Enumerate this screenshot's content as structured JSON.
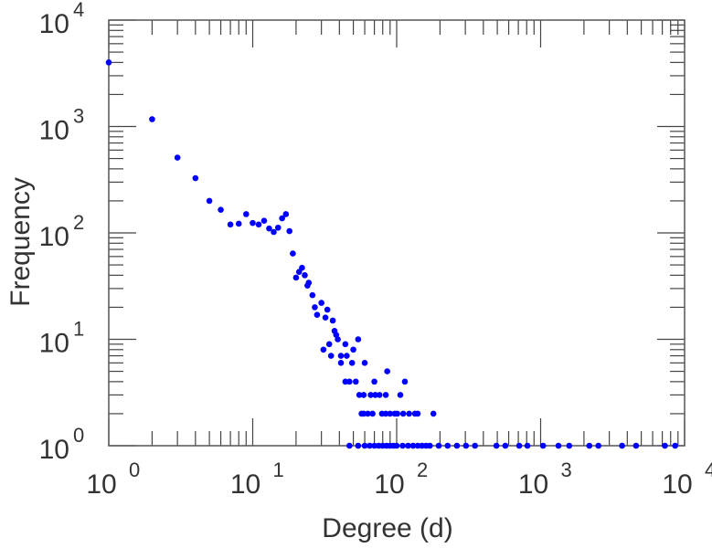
{
  "chart_data": {
    "type": "scatter",
    "title": "",
    "xlabel": "Degree (d)",
    "ylabel": "Frequency",
    "xscale": "log",
    "yscale": "log",
    "xlim": [
      1,
      10000
    ],
    "ylim": [
      1,
      10000
    ],
    "grid": false,
    "marker_color": "#0000ff",
    "x_ticks": [
      {
        "base": "10",
        "exp": "0"
      },
      {
        "base": "10",
        "exp": "1"
      },
      {
        "base": "10",
        "exp": "2"
      },
      {
        "base": "10",
        "exp": "3"
      },
      {
        "base": "10",
        "exp": "4"
      }
    ],
    "y_ticks": [
      {
        "base": "10",
        "exp": "0"
      },
      {
        "base": "10",
        "exp": "1"
      },
      {
        "base": "10",
        "exp": "2"
      },
      {
        "base": "10",
        "exp": "3"
      },
      {
        "base": "10",
        "exp": "4"
      }
    ],
    "points": [
      [
        1,
        4000
      ],
      [
        2,
        1170
      ],
      [
        3,
        510
      ],
      [
        4,
        327
      ],
      [
        5,
        200
      ],
      [
        6,
        165
      ],
      [
        7,
        120
      ],
      [
        8,
        122
      ],
      [
        9,
        150
      ],
      [
        10,
        124
      ],
      [
        11,
        120
      ],
      [
        12,
        130
      ],
      [
        13,
        110
      ],
      [
        14,
        102
      ],
      [
        15,
        112
      ],
      [
        16,
        137
      ],
      [
        17,
        150
      ],
      [
        18,
        104
      ],
      [
        19,
        64
      ],
      [
        20,
        38
      ],
      [
        21,
        43
      ],
      [
        22,
        47
      ],
      [
        23,
        40
      ],
      [
        24,
        32
      ],
      [
        24.5,
        34
      ],
      [
        26,
        26
      ],
      [
        27,
        20
      ],
      [
        28,
        17
      ],
      [
        30,
        22
      ],
      [
        31,
        8
      ],
      [
        32,
        16
      ],
      [
        33,
        19
      ],
      [
        34,
        9
      ],
      [
        35,
        7
      ],
      [
        36,
        15
      ],
      [
        37,
        12
      ],
      [
        38,
        11
      ],
      [
        39,
        10
      ],
      [
        41,
        7
      ],
      [
        41,
        6
      ],
      [
        44,
        9
      ],
      [
        45,
        7
      ],
      [
        49,
        6
      ],
      [
        50,
        8
      ],
      [
        54,
        10
      ],
      [
        60,
        6
      ],
      [
        86,
        5
      ],
      [
        44,
        4
      ],
      [
        47,
        4
      ],
      [
        52,
        4
      ],
      [
        70,
        4
      ],
      [
        114,
        4
      ],
      [
        55,
        3
      ],
      [
        59,
        3
      ],
      [
        66,
        3
      ],
      [
        71,
        3
      ],
      [
        76,
        3
      ],
      [
        84,
        3
      ],
      [
        106,
        3
      ],
      [
        57,
        2
      ],
      [
        59,
        2
      ],
      [
        63,
        2
      ],
      [
        68,
        2
      ],
      [
        79,
        2
      ],
      [
        84,
        2
      ],
      [
        90,
        2
      ],
      [
        97,
        2
      ],
      [
        101,
        2
      ],
      [
        111,
        2
      ],
      [
        122,
        2
      ],
      [
        134,
        2
      ],
      [
        140,
        2
      ],
      [
        180,
        2
      ],
      [
        47,
        1
      ],
      [
        54,
        1
      ],
      [
        60,
        1
      ],
      [
        65,
        1
      ],
      [
        70,
        1
      ],
      [
        75,
        1
      ],
      [
        80,
        1
      ],
      [
        85,
        1
      ],
      [
        90,
        1
      ],
      [
        95,
        1
      ],
      [
        100,
        1
      ],
      [
        110,
        1
      ],
      [
        120,
        1
      ],
      [
        130,
        1
      ],
      [
        140,
        1
      ],
      [
        150,
        1
      ],
      [
        160,
        1
      ],
      [
        170,
        1
      ],
      [
        196,
        1
      ],
      [
        226,
        1
      ],
      [
        262,
        1
      ],
      [
        303,
        1
      ],
      [
        350,
        1
      ],
      [
        493,
        1
      ],
      [
        569,
        1
      ],
      [
        710,
        1
      ],
      [
        810,
        1
      ],
      [
        1040,
        1
      ],
      [
        1330,
        1
      ],
      [
        1580,
        1
      ],
      [
        2180,
        1
      ],
      [
        2520,
        1
      ],
      [
        3680,
        1
      ],
      [
        4600,
        1
      ],
      [
        7300,
        1
      ],
      [
        8600,
        1
      ]
    ]
  }
}
